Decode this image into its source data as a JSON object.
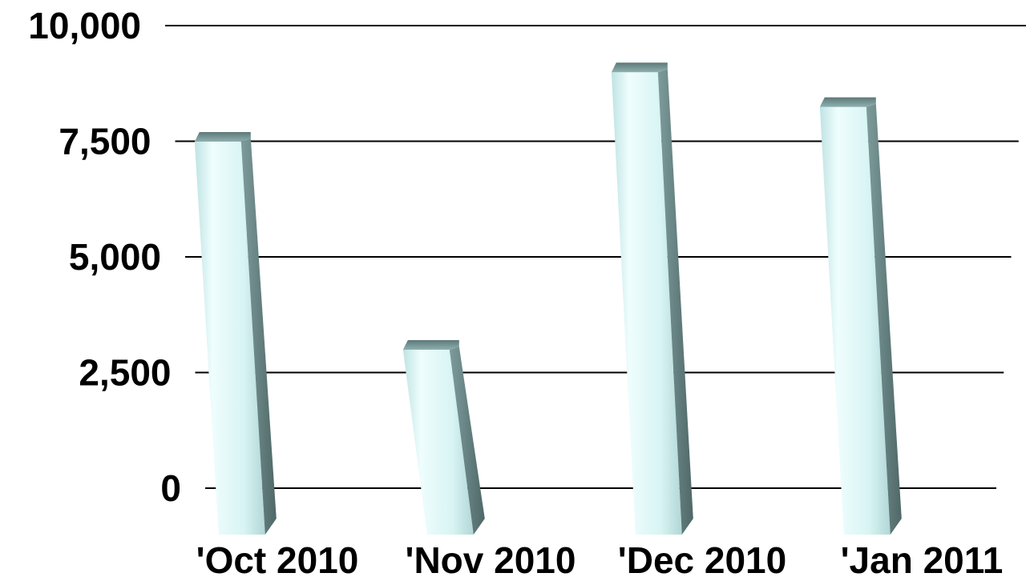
{
  "chart_data": {
    "type": "bar",
    "categories": [
      "'Oct 2010",
      "'Nov 2010",
      "'Dec 2010",
      "'Jan 2011"
    ],
    "values": [
      7700,
      3200,
      9200,
      8450
    ],
    "ylim": [
      0,
      10000
    ],
    "yticks": [
      "0",
      "2,500",
      "5,000",
      "7,500",
      "10,000"
    ],
    "ytick_values": [
      0,
      2500,
      5000,
      7500,
      10000
    ],
    "grid": true,
    "legend": "none",
    "colors": {
      "bar_front": "#d4f1f1",
      "bar_light": "#eefcfc",
      "bar_top": "#6b8a8a",
      "bar_side": "#5a7272",
      "gridline": "#000000"
    }
  }
}
